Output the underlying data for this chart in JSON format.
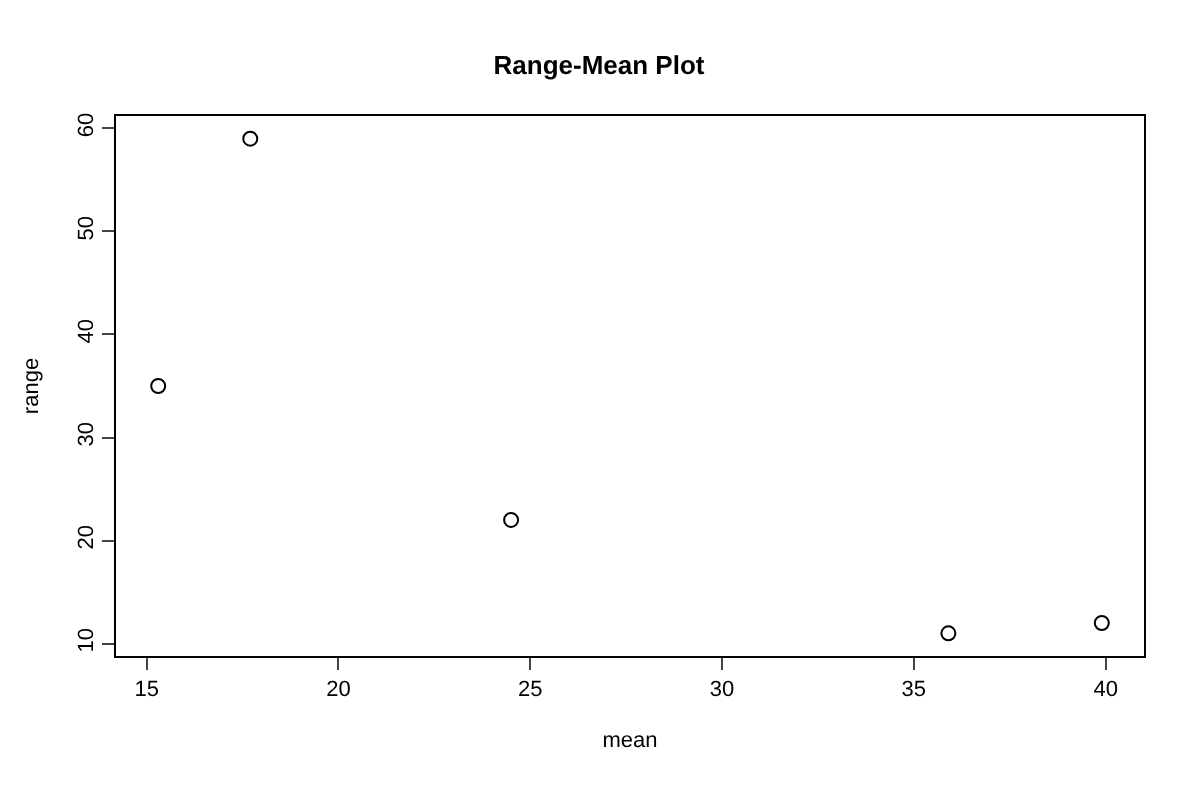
{
  "chart_data": {
    "type": "scatter",
    "title": "Range-Mean Plot",
    "xlabel": "mean",
    "ylabel": "range",
    "x": [
      15.3,
      17.7,
      24.5,
      35.9,
      39.9
    ],
    "series": [
      {
        "color": "#000000",
        "values": [
          35,
          59,
          22,
          11,
          12
        ]
      }
    ],
    "xlim": [
      14.2,
      41.0
    ],
    "xticks": [
      15,
      20,
      25,
      30,
      35,
      40
    ],
    "ylim": [
      8.8,
      61.2
    ],
    "yticks": [
      10,
      20,
      30,
      40,
      50,
      60
    ],
    "marker": "circle"
  }
}
